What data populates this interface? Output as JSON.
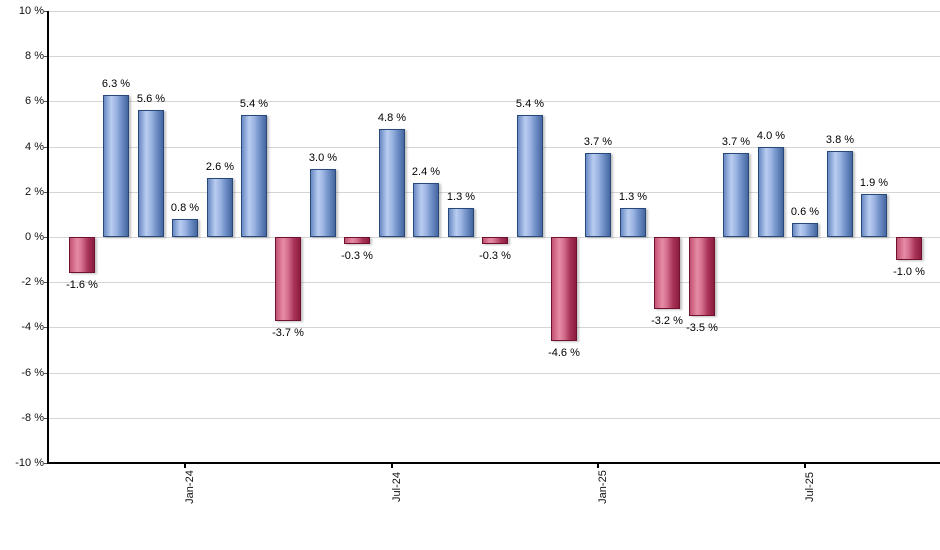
{
  "chart_data": {
    "type": "bar",
    "title": "",
    "xlabel": "",
    "ylabel": "",
    "unit": "%",
    "ylim": [
      -10,
      10
    ],
    "grid": true,
    "y_tick_labels": [
      "10 %",
      "8 %",
      "6 %",
      "4 %",
      "2 %",
      "0 %",
      "-2 %",
      "-4 %",
      "-6 %",
      "-8 %",
      "-10 %"
    ],
    "bars": [
      {
        "value": -1.6,
        "label": "-1.6 %"
      },
      {
        "value": 6.3,
        "label": "6.3 %"
      },
      {
        "value": 5.6,
        "label": "5.6 %"
      },
      {
        "value": 0.8,
        "label": "0.8 %"
      },
      {
        "value": 2.6,
        "label": "2.6 %"
      },
      {
        "value": 5.4,
        "label": "5.4 %"
      },
      {
        "value": -3.7,
        "label": "-3.7 %"
      },
      {
        "value": 3.0,
        "label": "3.0 %"
      },
      {
        "value": -0.3,
        "label": "-0.3 %"
      },
      {
        "value": 4.8,
        "label": "4.8 %"
      },
      {
        "value": 2.4,
        "label": "2.4 %"
      },
      {
        "value": 1.3,
        "label": "1.3 %"
      },
      {
        "value": -0.3,
        "label": "-0.3 %"
      },
      {
        "value": 5.4,
        "label": "5.4 %"
      },
      {
        "value": -4.6,
        "label": "-4.6 %"
      },
      {
        "value": 3.7,
        "label": "3.7 %"
      },
      {
        "value": 1.3,
        "label": "1.3 %"
      },
      {
        "value": -3.2,
        "label": "-3.2 %"
      },
      {
        "value": -3.5,
        "label": "-3.5 %"
      },
      {
        "value": 3.7,
        "label": "3.7 %"
      },
      {
        "value": 4.0,
        "label": "4.0 %"
      },
      {
        "value": 0.6,
        "label": "0.6 %"
      },
      {
        "value": 3.8,
        "label": "3.8 %"
      },
      {
        "value": 1.9,
        "label": "1.9 %"
      },
      {
        "value": -1.0,
        "label": "-1.0 %"
      }
    ],
    "x_ticks": [
      {
        "label": "Jan-24",
        "bar_index": 3
      },
      {
        "label": "Jul-24",
        "bar_index": 9
      },
      {
        "label": "Jan-25",
        "bar_index": 15
      },
      {
        "label": "Jul-25",
        "bar_index": 21
      }
    ],
    "colors": {
      "positive_gradient": [
        "#6a89c4",
        "#b9cdf0",
        "#9db5e3",
        "#6c8cc4",
        "#45669f"
      ],
      "negative_gradient": [
        "#c25272",
        "#e68ca5",
        "#d46e8e",
        "#a93358",
        "#8c1d3f"
      ],
      "gradient_stops_pct": [
        0,
        30,
        50,
        75,
        100
      ],
      "positive_border": "#27497a",
      "negative_border": "#6e1230",
      "gridline": "#d5d5d5",
      "axis": "#000000",
      "label_text": "#000000"
    }
  }
}
